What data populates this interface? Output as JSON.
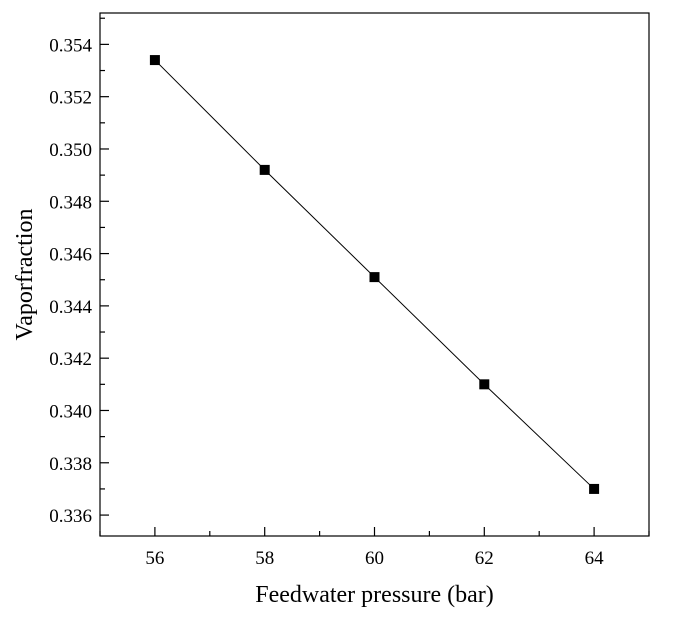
{
  "chart_data": {
    "type": "line",
    "title": "",
    "xlabel": "Feedwater pressure (bar)",
    "ylabel": "Vaporfraction",
    "xlim": [
      55,
      65
    ],
    "ylim": [
      0.3352,
      0.3552
    ],
    "x_ticks": [
      56,
      58,
      60,
      62,
      64
    ],
    "x_minor_ticks": [
      55,
      57,
      59,
      61,
      63,
      65
    ],
    "y_ticks": [
      0.336,
      0.338,
      0.34,
      0.342,
      0.344,
      0.346,
      0.348,
      0.35,
      0.352,
      0.354
    ],
    "y_tick_labels": [
      "0.336",
      "0.338",
      "0.340",
      "0.342",
      "0.344",
      "0.346",
      "0.348",
      "0.350",
      "0.352",
      "0.354"
    ],
    "y_minor_ticks": [
      0.337,
      0.339,
      0.341,
      0.343,
      0.345,
      0.347,
      0.349,
      0.351,
      0.353,
      0.355
    ],
    "grid": false,
    "legend": "none",
    "series": [
      {
        "marker": "square",
        "color": "#000000",
        "x": [
          56,
          58,
          60,
          62,
          64
        ],
        "y": [
          0.3534,
          0.3492,
          0.3451,
          0.341,
          0.337
        ]
      }
    ]
  }
}
